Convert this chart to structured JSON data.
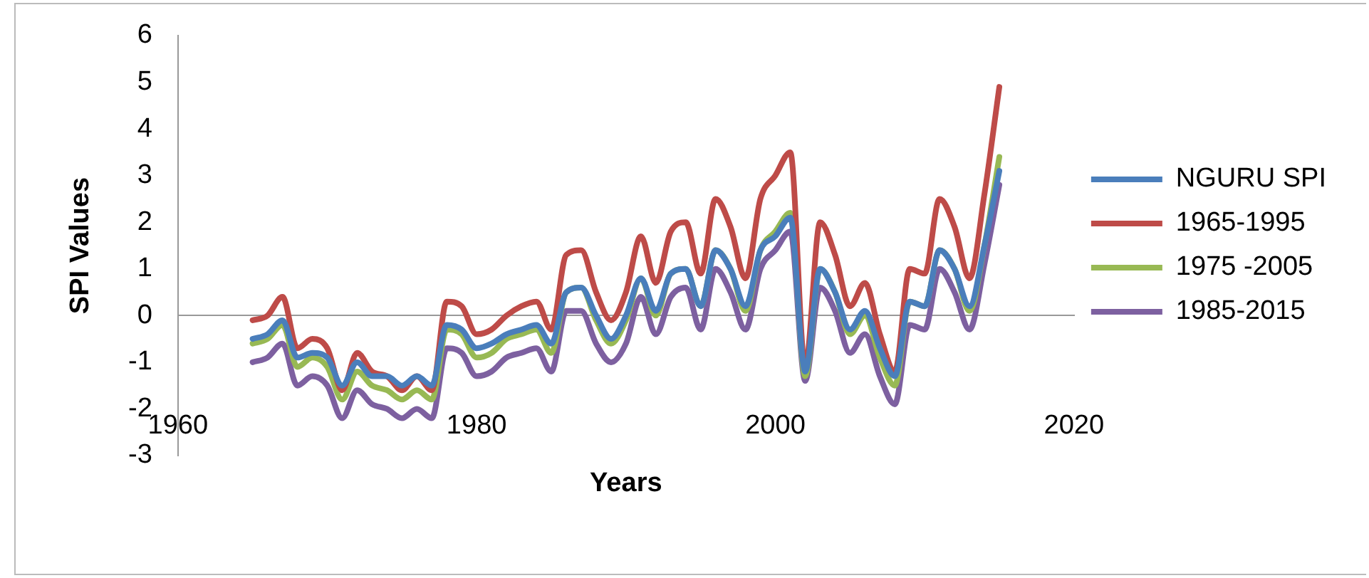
{
  "chart_data": {
    "type": "line",
    "xlabel": "Years",
    "ylabel": "SPI Values",
    "x": [
      1965,
      1966,
      1967,
      1968,
      1969,
      1970,
      1971,
      1972,
      1973,
      1974,
      1975,
      1976,
      1977,
      1978,
      1979,
      1980,
      1981,
      1982,
      1983,
      1984,
      1985,
      1986,
      1987,
      1988,
      1989,
      1990,
      1991,
      1992,
      1993,
      1994,
      1995,
      1996,
      1997,
      1998,
      1999,
      2000,
      2001,
      2002,
      2003,
      2004,
      2005,
      2006,
      2007,
      2008,
      2009,
      2010,
      2011,
      2012,
      2013,
      2014,
      2015
    ],
    "xlim": [
      1960,
      2020
    ],
    "xticks": [
      1960,
      1980,
      2000,
      2020
    ],
    "ylim": [
      -3,
      6
    ],
    "yticks": [
      -3,
      -2,
      -1,
      0,
      1,
      2,
      3,
      4,
      5,
      6
    ],
    "legend": "right",
    "marker": "none",
    "line_style": "solid",
    "series": [
      {
        "name": "NGURU SPI",
        "color": "#4a7ebb",
        "values": [
          -0.5,
          -0.4,
          -0.1,
          -0.9,
          -0.8,
          -0.9,
          -1.5,
          -1.0,
          -1.3,
          -1.3,
          -1.5,
          -1.3,
          -1.5,
          -0.2,
          -0.3,
          -0.7,
          -0.6,
          -0.4,
          -0.3,
          -0.2,
          -0.6,
          0.5,
          0.6,
          0.0,
          -0.5,
          0.0,
          0.8,
          0.1,
          0.9,
          1.0,
          0.2,
          1.4,
          1.0,
          0.2,
          1.4,
          1.7,
          2.1,
          -1.2,
          1.0,
          0.5,
          -0.3,
          0.1,
          -0.7,
          -1.3,
          0.3,
          0.2,
          1.4,
          1.0,
          0.2,
          1.5,
          3.1
        ]
      },
      {
        "name": "1965-1995",
        "color": "#be4b48",
        "values": [
          -0.1,
          0.0,
          0.4,
          -0.7,
          -0.5,
          -0.7,
          -1.6,
          -0.8,
          -1.2,
          -1.3,
          -1.6,
          -1.3,
          -1.6,
          0.3,
          0.2,
          -0.4,
          -0.3,
          0.0,
          0.2,
          0.3,
          -0.3,
          1.3,
          1.4,
          0.5,
          -0.1,
          0.5,
          1.7,
          0.7,
          1.8,
          2.0,
          0.9,
          2.5,
          1.9,
          0.8,
          2.5,
          3.0,
          3.5,
          -1.1,
          2.0,
          1.3,
          0.2,
          0.7,
          -0.4,
          -1.2,
          1.0,
          0.9,
          2.5,
          1.9,
          0.8,
          2.6,
          4.9
        ]
      },
      {
        "name": "1975 -2005",
        "color": "#98b954",
        "values": [
          -0.6,
          -0.5,
          -0.2,
          -1.1,
          -0.9,
          -1.1,
          -1.8,
          -1.2,
          -1.5,
          -1.6,
          -1.8,
          -1.6,
          -1.8,
          -0.3,
          -0.4,
          -0.9,
          -0.8,
          -0.5,
          -0.4,
          -0.3,
          -0.8,
          0.5,
          0.6,
          -0.1,
          -0.6,
          -0.1,
          0.8,
          0.0,
          0.9,
          1.0,
          0.2,
          1.4,
          1.0,
          0.1,
          1.4,
          1.8,
          2.2,
          -1.3,
          1.0,
          0.5,
          -0.4,
          0.0,
          -0.9,
          -1.5,
          0.3,
          0.2,
          1.4,
          1.0,
          0.1,
          1.5,
          3.4
        ]
      },
      {
        "name": "1985-2015",
        "color": "#7d60a0",
        "values": [
          -1.0,
          -0.9,
          -0.6,
          -1.5,
          -1.3,
          -1.5,
          -2.2,
          -1.6,
          -1.9,
          -2.0,
          -2.2,
          -2.0,
          -2.2,
          -0.7,
          -0.8,
          -1.3,
          -1.2,
          -0.9,
          -0.8,
          -0.7,
          -1.2,
          0.1,
          0.1,
          -0.6,
          -1.0,
          -0.6,
          0.4,
          -0.4,
          0.4,
          0.6,
          -0.3,
          1.0,
          0.5,
          -0.3,
          1.0,
          1.4,
          1.8,
          -1.4,
          0.6,
          0.1,
          -0.8,
          -0.4,
          -1.3,
          -1.9,
          -0.2,
          -0.3,
          1.0,
          0.5,
          -0.3,
          1.1,
          2.8
        ]
      }
    ]
  }
}
